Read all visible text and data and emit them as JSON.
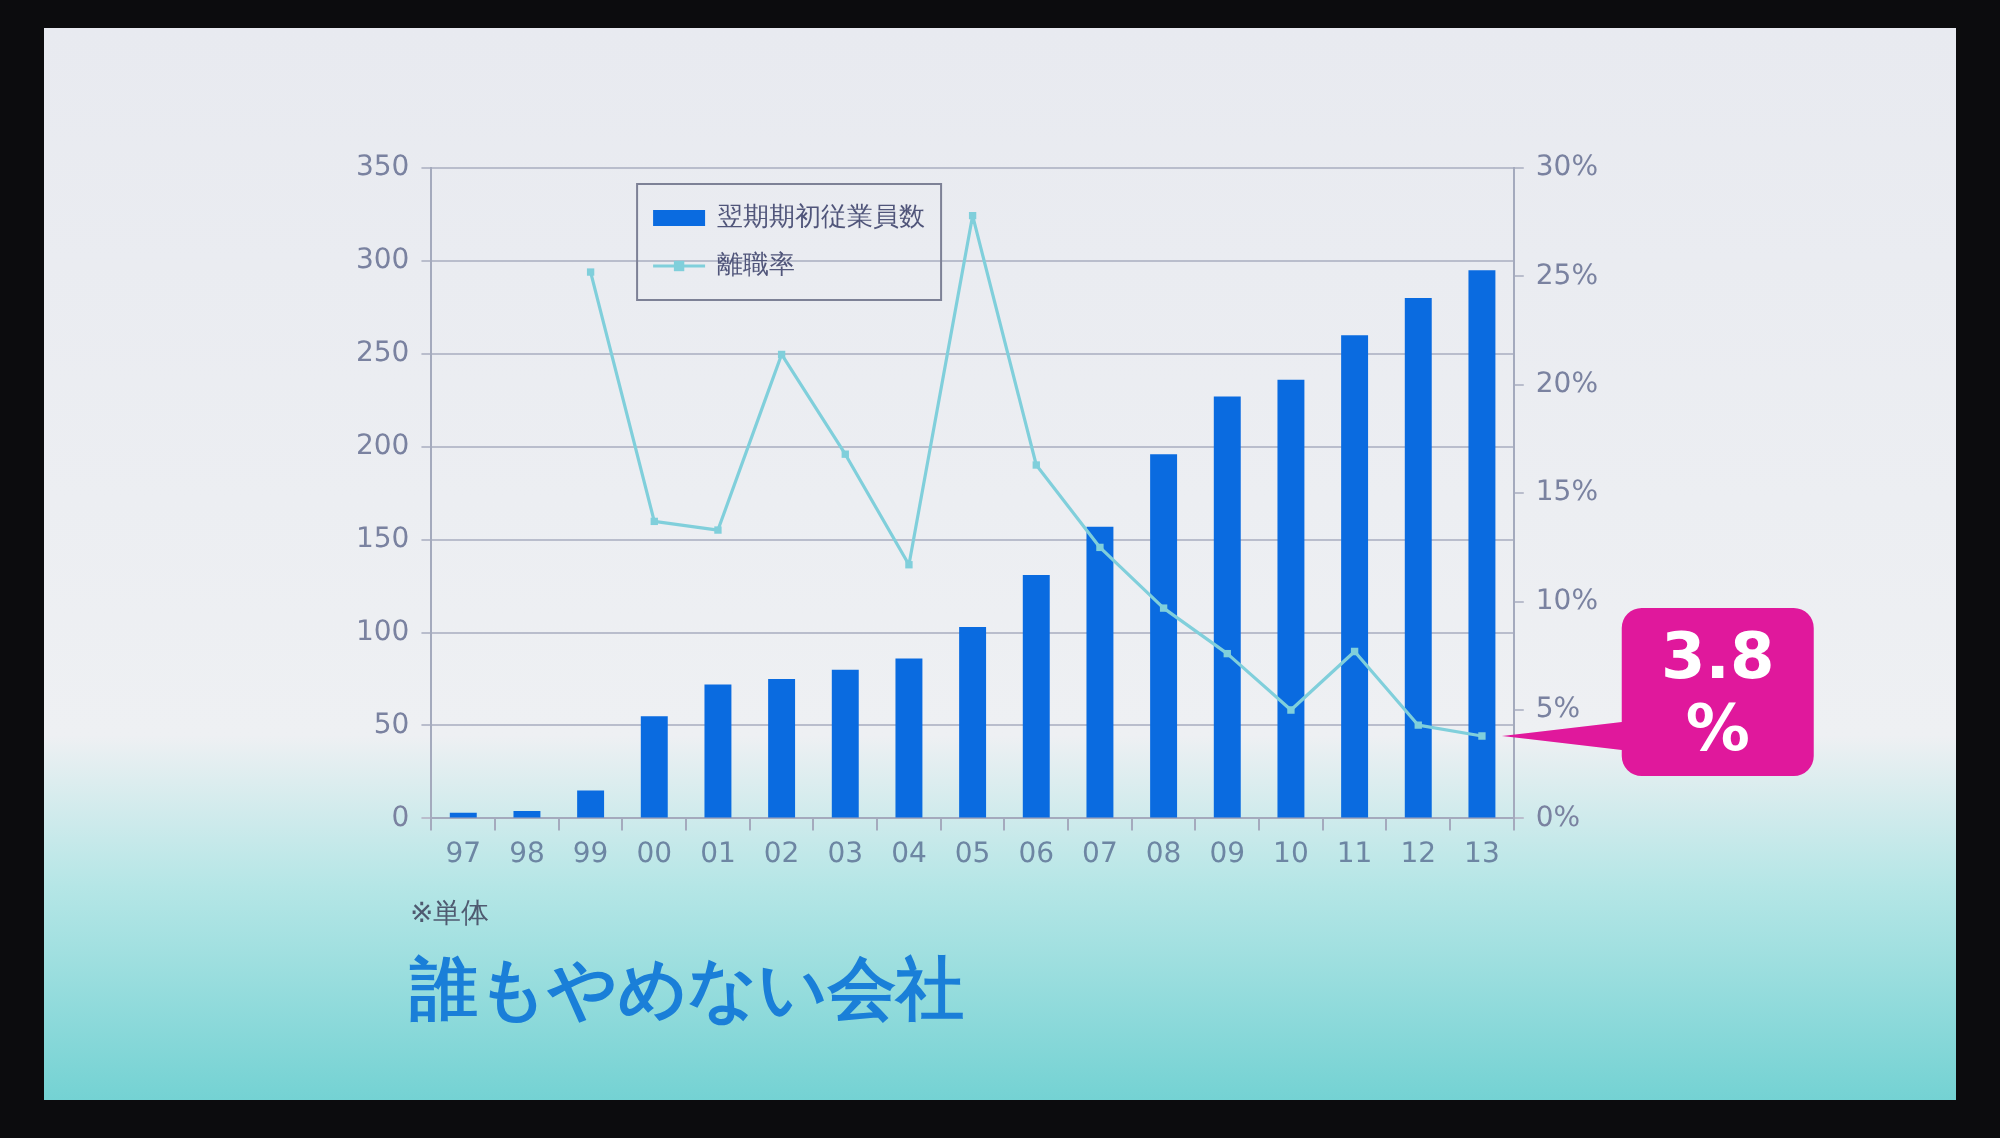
{
  "chart_data": {
    "type": "bar",
    "title": "誰もやめない会社",
    "categories": [
      "97",
      "98",
      "99",
      "00",
      "01",
      "02",
      "03",
      "04",
      "05",
      "06",
      "07",
      "08",
      "09",
      "10",
      "11",
      "12",
      "13"
    ],
    "series": [
      {
        "name": "翌期期初従業員数",
        "color": "#0a6be0",
        "values": [
          3,
          4,
          15,
          55,
          72,
          75,
          80,
          86,
          103,
          131,
          157,
          196,
          227,
          236,
          260,
          280,
          295
        ]
      },
      {
        "name": "離職率",
        "type": "line",
        "axis": "y2",
        "color": "#80cfdb",
        "values": [
          null,
          null,
          25.2,
          13.7,
          13.3,
          21.4,
          16.8,
          11.7,
          27.8,
          16.3,
          12.5,
          9.7,
          7.6,
          5.0,
          7.7,
          4.3,
          3.8
        ]
      }
    ],
    "ylim": [
      0,
      350
    ],
    "yticks": [
      0,
      50,
      100,
      150,
      200,
      250,
      300,
      350
    ],
    "y2lim": [
      0,
      30
    ],
    "y2ticks": [
      {
        "value": 0,
        "label": "0%"
      },
      {
        "value": 5,
        "label": "5%"
      },
      {
        "value": 10,
        "label": "10%"
      },
      {
        "value": 15,
        "label": "15%"
      },
      {
        "value": 20,
        "label": "20%"
      },
      {
        "value": 25,
        "label": "25%"
      },
      {
        "value": 30,
        "label": "30%"
      }
    ],
    "grid": "y",
    "legend": "top left",
    "marker": "square",
    "annotations": [
      {
        "text": "3.8 %",
        "x": "13",
        "y": 3.8
      },
      "※単体"
    ]
  }
}
